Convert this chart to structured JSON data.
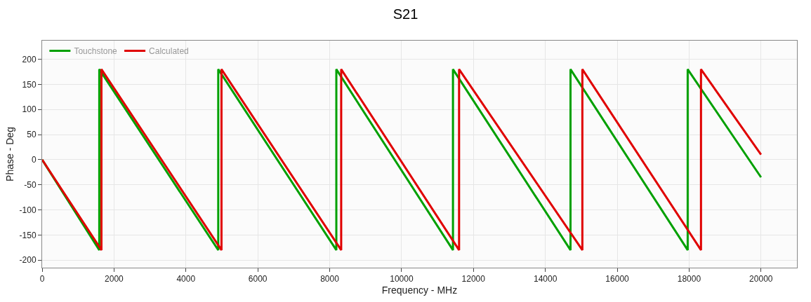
{
  "chart_data": {
    "type": "line",
    "title": "S21",
    "xlabel": "Frequency - MHz",
    "ylabel": "Phase - Deg",
    "xlim": [
      0,
      21000
    ],
    "ylim": [
      -215,
      237
    ],
    "xticks": [
      0,
      2000,
      4000,
      6000,
      8000,
      10000,
      12000,
      14000,
      16000,
      18000,
      20000
    ],
    "yticks": [
      -200,
      -150,
      -100,
      -50,
      0,
      50,
      100,
      150,
      200
    ],
    "grid": true,
    "legend": "top left",
    "marker": "none",
    "line_style": "solid",
    "series": [
      {
        "name": "Touchstone",
        "color": "#00a000",
        "x": [
          0,
          1590,
          1590,
          4900,
          4900,
          8185,
          8185,
          11430,
          11430,
          14700,
          14700,
          17960,
          17960,
          20000
        ],
        "values": [
          0,
          -180,
          180,
          -180,
          180,
          -180,
          180,
          -180,
          180,
          -180,
          180,
          -180,
          180,
          -35
        ]
      },
      {
        "name": "Calculated",
        "color": "#e00000",
        "x": [
          0,
          1650,
          1650,
          4990,
          4990,
          8320,
          8320,
          11600,
          11600,
          15030,
          15030,
          18330,
          18330,
          20000
        ],
        "values": [
          0,
          -180,
          180,
          -180,
          180,
          -180,
          180,
          -180,
          180,
          -180,
          180,
          -180,
          180,
          10
        ]
      }
    ]
  }
}
